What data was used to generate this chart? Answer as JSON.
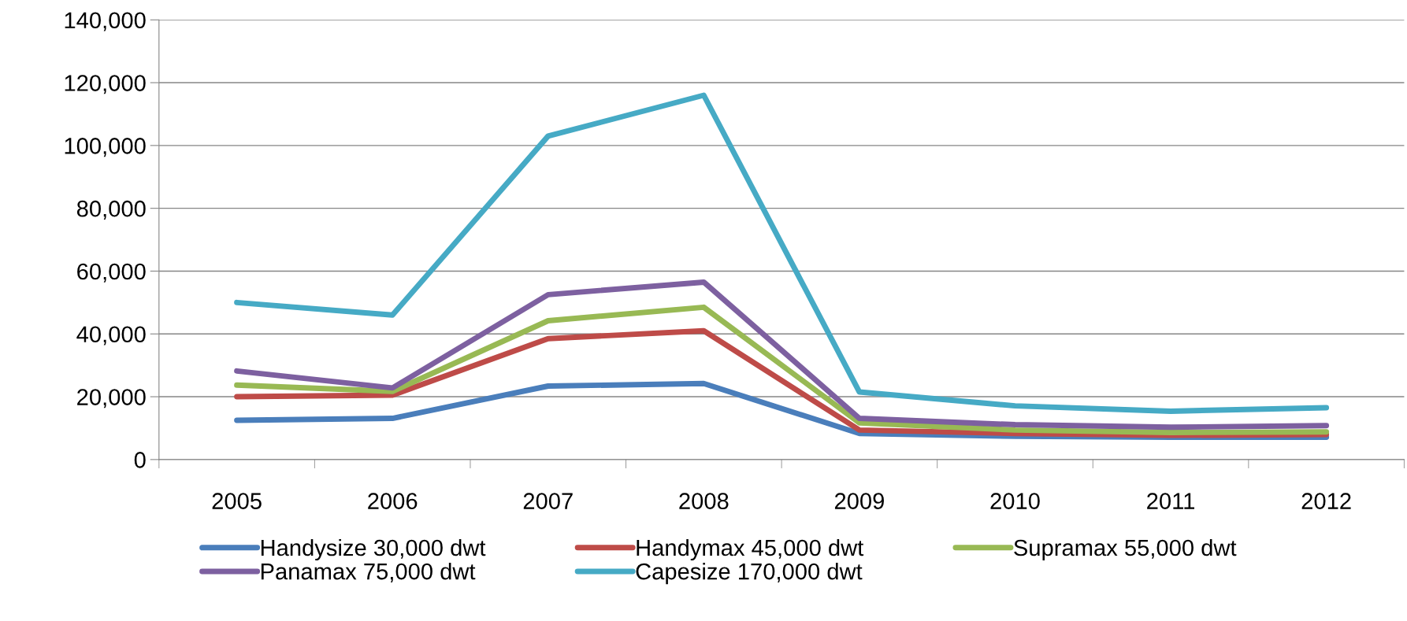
{
  "chart_data": {
    "type": "line",
    "categories": [
      "2005",
      "2006",
      "2007",
      "2008",
      "2009",
      "2010",
      "2011",
      "2012"
    ],
    "series": [
      {
        "name": "Handysize 30,000 dwt",
        "color": "#4a7ebb",
        "values": [
          12500,
          13100,
          23400,
          24200,
          8300,
          7400,
          7100,
          7100
        ]
      },
      {
        "name": "Handymax 45,000 dwt",
        "color": "#be4b48",
        "values": [
          20000,
          20500,
          38500,
          41000,
          9400,
          8300,
          7700,
          8000
        ]
      },
      {
        "name": "Supramax 55,000 dwt",
        "color": "#98b954",
        "values": [
          23700,
          21700,
          44200,
          48500,
          11700,
          9400,
          8600,
          8800
        ]
      },
      {
        "name": "Panamax 75,000 dwt",
        "color": "#7d60a0",
        "values": [
          28200,
          22800,
          52500,
          56500,
          13100,
          11100,
          10300,
          10800
        ]
      },
      {
        "name": "Capesize 170,000 dwt",
        "color": "#46aac5",
        "values": [
          50000,
          46000,
          103000,
          116000,
          21500,
          17100,
          15400,
          16500
        ]
      }
    ],
    "ylim": [
      0,
      140000
    ],
    "yticks": [
      {
        "value": 0,
        "label": "0"
      },
      {
        "value": 20000,
        "label": "20,000"
      },
      {
        "value": 40000,
        "label": "40,000"
      },
      {
        "value": 60000,
        "label": "60,000"
      },
      {
        "value": 80000,
        "label": "80,000"
      },
      {
        "value": 100000,
        "label": "100,000"
      },
      {
        "value": 120000,
        "label": "120,000"
      },
      {
        "value": 140000,
        "label": "140,000"
      }
    ],
    "grid": "y",
    "legend": "bottom",
    "marker": "none",
    "line_style": "solid"
  }
}
